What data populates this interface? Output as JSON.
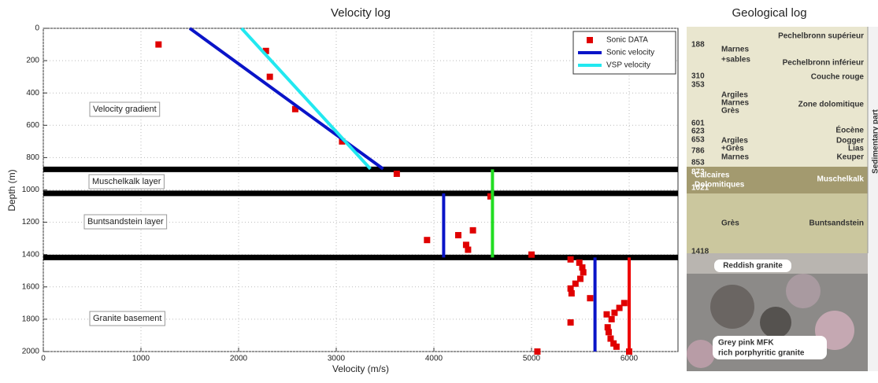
{
  "chart_data": {
    "type": "line",
    "title": "Velocity log",
    "x_label": "Velocity (m/s)",
    "y_label": "Depth (m)",
    "xlim": [
      0,
      6500
    ],
    "ylim": [
      0,
      2000
    ],
    "y_inverted": true,
    "xticks": [
      0,
      1000,
      2000,
      3000,
      4000,
      5000,
      6000
    ],
    "yticks": [
      0,
      200,
      400,
      600,
      800,
      1000,
      1200,
      1400,
      1600,
      1800,
      2000
    ],
    "grid": true,
    "legend": "upper right",
    "layer_boundaries": [
      873,
      1021,
      1418
    ],
    "boundary_color": "#000000",
    "annotations": [
      "Velocity gradient",
      "Muschelkalk layer",
      "Buntsandstein layer",
      "Granite basement"
    ],
    "series": [
      {
        "name": "Sonic DATA",
        "color": "#e00000",
        "style": "markers",
        "x": [
          1180,
          2280,
          2320,
          2580,
          3060,
          3620,
          4580,
          3930,
          4250,
          4400,
          4330,
          4350,
          5000,
          5400,
          5490,
          5520,
          5530,
          5500,
          5450,
          5400,
          5410,
          5600,
          5950,
          5900,
          5850,
          5770,
          5820,
          5780,
          5790,
          5810,
          5840,
          5870,
          5400,
          5060,
          6000
        ],
        "values": [
          100,
          140,
          300,
          500,
          700,
          900,
          1040,
          1310,
          1280,
          1250,
          1340,
          1370,
          1400,
          1430,
          1450,
          1480,
          1510,
          1550,
          1580,
          1610,
          1640,
          1670,
          1700,
          1730,
          1760,
          1770,
          1800,
          1850,
          1880,
          1920,
          1950,
          1970,
          1820,
          2000,
          2000
        ]
      },
      {
        "name": "Sonic velocity",
        "color": "#0a14c8",
        "style": "lines",
        "x": [
          1500,
          3480,
          null,
          4100,
          4100,
          null,
          5650,
          5650
        ],
        "values": [
          0,
          870,
          null,
          1021,
          1418,
          null,
          1418,
          2000
        ]
      },
      {
        "name": "VSP velocity",
        "color": "#22e8f0",
        "style": "lines",
        "x": [
          2030,
          3350
        ],
        "values": [
          0,
          870
        ]
      },
      {
        "color": "#22dd22",
        "style": "lines",
        "x": [
          4600,
          4600
        ],
        "values": [
          873,
          1418
        ]
      },
      {
        "color": "#ee0000",
        "style": "lines",
        "x": [
          6000,
          6000
        ],
        "values": [
          1418,
          2000
        ]
      }
    ]
  },
  "geological_log": {
    "title": "Geological log",
    "depths": [
      188,
      310,
      353,
      601,
      623,
      653,
      786,
      853,
      873,
      1021,
      1418
    ],
    "lithology": [
      "Marnes",
      "+sables",
      "Argiles",
      "Marnes",
      "Grès",
      "Argiles",
      "+Grès",
      "Marnes",
      "Calcaires",
      "Dolomitiques",
      "Grès",
      "Reddish granite",
      "Grey pink MFK",
      "rich porphyritic granite"
    ],
    "formations": [
      "Pechelbronn supérieur",
      "Pechelbronn inférieur",
      "Couche rouge",
      "Zone dolomitique",
      "Éocène",
      "Dogger",
      "Lias",
      "Keuper",
      "Muschelkalk",
      "Buntsandstein"
    ],
    "side_label": "Sedimentary part"
  }
}
